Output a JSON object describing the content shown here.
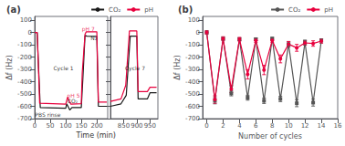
{
  "chart_data": [
    {
      "type": "line",
      "title": "(a)",
      "xlabel": "Time (min)",
      "ylabel": "Δf (Hz)",
      "xlim": [
        0,
        235
      ],
      "xticks": [
        0,
        50,
        100,
        150,
        200
      ],
      "ylim": [
        -700,
        130
      ],
      "yticks": [
        -700,
        -600,
        -500,
        -400,
        -300,
        -200,
        -100,
        0,
        100
      ],
      "grid": false,
      "series": [
        {
          "color": "#1a1a1a",
          "x": [
            0,
            8,
            9,
            18,
            100,
            103,
            113,
            120,
            150,
            155,
            162,
            168,
            200,
            205,
            225,
            232
          ],
          "values": [
            0,
            0,
            -80,
            -610,
            -615,
            -580,
            -630,
            -610,
            -610,
            -380,
            -25,
            -30,
            -32,
            -600,
            -600,
            -600
          ]
        },
        {
          "color": "#e8003d",
          "x": [
            0,
            8,
            9,
            16,
            100,
            106,
            116,
            150,
            153,
            162,
            166,
            175,
            200,
            205,
            225,
            232
          ],
          "values": [
            0,
            0,
            -50,
            -575,
            -582,
            -525,
            -582,
            -578,
            -330,
            -15,
            5,
            5,
            5,
            -565,
            -565,
            -565
          ]
        }
      ],
      "annotations": [
        {
          "text": "CO₂",
          "x": 105,
          "y": -580,
          "color": "#000000"
        },
        {
          "text": "pH 7",
          "x": 152,
          "y": 8,
          "color": "#e8003d"
        },
        {
          "text": "N₂",
          "x": 180,
          "y": -70,
          "color": "#000000"
        },
        {
          "text": "pH 5",
          "x": 104,
          "y": -530,
          "color": "#e8003d"
        },
        {
          "text": "Cycle 1",
          "x": 60,
          "y": -310,
          "color": "#000000"
        },
        {
          "text": "PBS rinse",
          "x": 1,
          "y": -688,
          "color": "#000000"
        }
      ]
    },
    {
      "type": "line",
      "xlim": [
        800,
        980
      ],
      "xticks": [
        850,
        900,
        950
      ],
      "ylim": [
        -700,
        130
      ],
      "yticks": [
        -700,
        -600,
        -500,
        -400,
        -300,
        -200,
        -100,
        0,
        100
      ],
      "tick_labels": "x",
      "grid": false,
      "legend": "upper right",
      "series": [
        {
          "name": "CO₂",
          "color": "#1a1a1a",
          "x": [
            800,
            840,
            860,
            875,
            900,
            905,
            940,
            950,
            975
          ],
          "values": [
            -600,
            -580,
            -510,
            -30,
            -30,
            -540,
            -540,
            -490,
            -490
          ]
        },
        {
          "name": "pH",
          "color": "#e8003d",
          "x": [
            800,
            840,
            858,
            872,
            900,
            905,
            940,
            950,
            975
          ],
          "values": [
            -560,
            -540,
            -430,
            12,
            12,
            -480,
            -480,
            -445,
            -445
          ]
        }
      ],
      "annotations": [
        {
          "text": "Cycle 7",
          "x": 855,
          "y": -310,
          "color": "#000000"
        }
      ]
    },
    {
      "type": "line",
      "title": "(b)",
      "xlabel": "Number of cycles",
      "ylabel": "Δf (Hz)",
      "xlim": [
        -0.5,
        16
      ],
      "xticks": [
        0,
        2,
        4,
        6,
        8,
        10,
        12,
        14,
        16
      ],
      "ylim": [
        -700,
        130
      ],
      "yticks": [
        -700,
        -600,
        -500,
        -400,
        -300,
        -200,
        -100,
        0,
        100
      ],
      "grid": false,
      "legend": "upper right",
      "series": [
        {
          "name": "CO₂",
          "color": "#555555",
          "marker": "square",
          "line_style": "solid",
          "x": [
            0,
            1,
            2,
            3,
            4,
            5,
            6,
            7,
            8,
            9,
            10,
            11,
            12,
            13,
            14
          ],
          "values": [
            0,
            -555,
            -50,
            -495,
            -55,
            -530,
            -55,
            -555,
            -50,
            -540,
            -95,
            -575,
            -80,
            -570,
            -65
          ],
          "error": [
            5,
            25,
            10,
            20,
            10,
            20,
            10,
            22,
            10,
            22,
            18,
            28,
            18,
            28,
            12
          ]
        },
        {
          "name": "pH",
          "color": "#e8003d",
          "marker": "circle",
          "line_style": "solid",
          "x": [
            0,
            1,
            2,
            3,
            4,
            5,
            6,
            7,
            8,
            9,
            10,
            11,
            12,
            13,
            14
          ],
          "values": [
            0,
            -545,
            -50,
            -460,
            -55,
            -340,
            -65,
            -305,
            -65,
            -215,
            -95,
            -125,
            -85,
            -90,
            -70
          ],
          "error": [
            15,
            30,
            15,
            28,
            15,
            38,
            15,
            38,
            15,
            32,
            22,
            28,
            18,
            22,
            18
          ]
        }
      ]
    }
  ]
}
